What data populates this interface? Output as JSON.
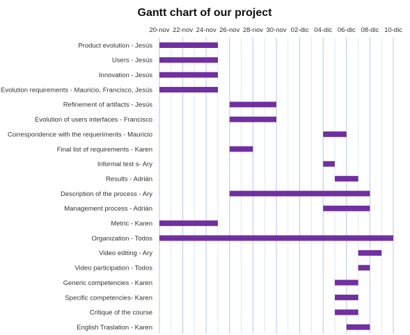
{
  "chart_data": {
    "type": "bar",
    "orientation": "horizontal",
    "style": "gantt",
    "title": "Gantt chart of our project",
    "xaxis_position": "top",
    "xlim": [
      "2016-11-20",
      "2016-12-10"
    ],
    "x_ticks": [
      "20-nov",
      "22-nov",
      "24-nov",
      "26-nov",
      "28-nov",
      "30-nov",
      "02-dic",
      "04-dic",
      "06-dic",
      "08-dic",
      "10-dic"
    ],
    "grid": true,
    "bar_color": "#7030a0",
    "tasks": [
      {
        "label": "Product evolution - Jesús",
        "start": "2016-11-20",
        "end": "2016-11-25"
      },
      {
        "label": "Users - Jesús",
        "start": "2016-11-20",
        "end": "2016-11-25"
      },
      {
        "label": "Innovation - Jesús",
        "start": "2016-11-20",
        "end": "2016-11-25"
      },
      {
        "label": "Evolution requirements - Mauricio, Francisco, Jesús",
        "start": "2016-11-20",
        "end": "2016-11-25"
      },
      {
        "label": "Refinement of artifacts - Jesús",
        "start": "2016-11-26",
        "end": "2016-11-30"
      },
      {
        "label": "Evolution of users interfaces - Francisco",
        "start": "2016-11-26",
        "end": "2016-11-30"
      },
      {
        "label": "Correspondence with the requeriments - Mauricio",
        "start": "2016-12-04",
        "end": "2016-12-06"
      },
      {
        "label": "Final list of requirements - Karen",
        "start": "2016-11-26",
        "end": "2016-11-28"
      },
      {
        "label": "Informal test s- Ary",
        "start": "2016-12-04",
        "end": "2016-12-05"
      },
      {
        "label": "Results - Adrián",
        "start": "2016-12-05",
        "end": "2016-12-07"
      },
      {
        "label": "Description of the process - Ary",
        "start": "2016-11-26",
        "end": "2016-12-08"
      },
      {
        "label": "Management process - Adrián",
        "start": "2016-12-04",
        "end": "2016-12-08"
      },
      {
        "label": "Metric - Karen",
        "start": "2016-11-20",
        "end": "2016-11-25"
      },
      {
        "label": "Organization - Todos",
        "start": "2016-11-20",
        "end": "2016-12-10"
      },
      {
        "label": "Video editing - Ary",
        "start": "2016-12-07",
        "end": "2016-12-09"
      },
      {
        "label": "Video participation - Todos",
        "start": "2016-12-07",
        "end": "2016-12-08"
      },
      {
        "label": "Generic competencies - Karen",
        "start": "2016-12-05",
        "end": "2016-12-07"
      },
      {
        "label": "Specific competencies- Karen",
        "start": "2016-12-05",
        "end": "2016-12-07"
      },
      {
        "label": "Critique of the course",
        "start": "2016-12-05",
        "end": "2016-12-07"
      },
      {
        "label": "English Traslation - Karen",
        "start": "2016-12-06",
        "end": "2016-12-08"
      }
    ]
  }
}
